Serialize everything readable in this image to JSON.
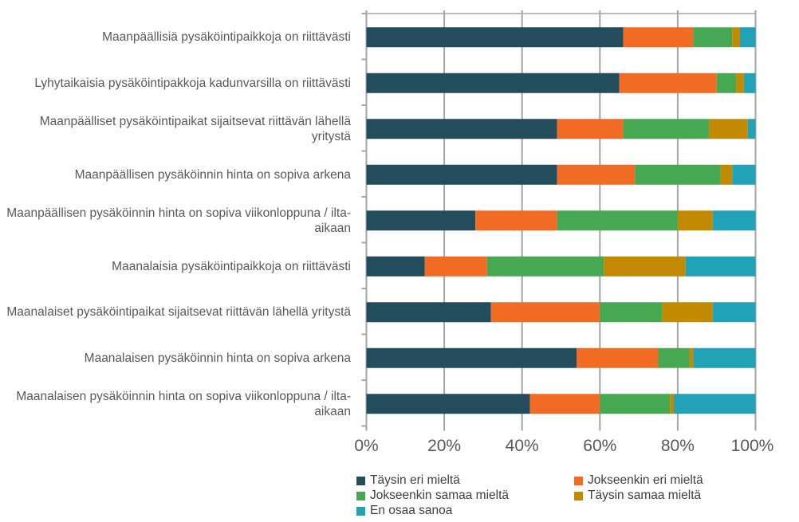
{
  "chart_data": {
    "type": "bar",
    "orientation": "horizontal",
    "stacked": "percent",
    "categories": [
      "Maanpäällisiä pysäköintipaikkoja on riittävästi",
      "Lyhytaikaisia pysäköintipakkoja kadunvarsilla on riittävästi",
      "Maanpäälliset pysäköintipaikat sijaitsevat riittävän lähellä yritystä",
      "Maanpäällisen pysäköinnin hinta on sopiva arkena",
      "Maanpäällisen pysäköinnin hinta on sopiva viikonloppuna / ilta-aikaan",
      "Maanalaisia pysäköintipaikkoja on riittävästi",
      "Maanalaiset pysäköintipaikat sijaitsevat riittävän lähellä yritystä",
      "Maanalaisen pysäköinnin hinta on sopiva arkena",
      "Maanalaisen pysäköinnin hinta on sopiva viikonloppuna / ilta-aikaan"
    ],
    "series": [
      {
        "name": "Täysin eri mieltä",
        "color": "#234d5c",
        "values": [
          66,
          65,
          49,
          49,
          28,
          15,
          32,
          54,
          42
        ]
      },
      {
        "name": "Jokseenkin eri mieltä",
        "color": "#f26b24",
        "values": [
          18,
          25,
          17,
          20,
          21,
          16,
          28,
          21,
          18
        ]
      },
      {
        "name": "Jokseenkin samaa mieltä",
        "color": "#46a853",
        "values": [
          10,
          5,
          22,
          22,
          31,
          30,
          16,
          8,
          18
        ]
      },
      {
        "name": "Täysin samaa mieltä",
        "color": "#c28a00",
        "values": [
          2,
          2,
          10,
          3,
          9,
          21,
          13,
          1,
          1
        ]
      },
      {
        "name": "En osaa sanoa",
        "color": "#22a2b6",
        "values": [
          4,
          3,
          2,
          6,
          11,
          18,
          11,
          16,
          21
        ]
      }
    ],
    "xlim": [
      0,
      100
    ],
    "x_ticks": [
      "0%",
      "20%",
      "40%",
      "60%",
      "80%",
      "100%"
    ],
    "grid": true,
    "legend_position": "bottom"
  }
}
